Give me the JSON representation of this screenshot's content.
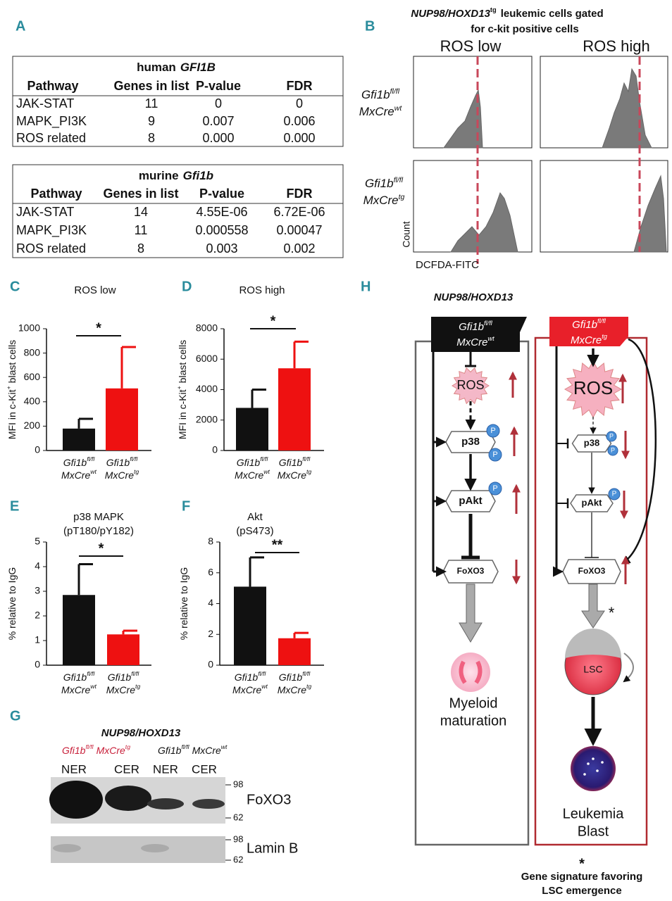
{
  "panel_labels": [
    "A",
    "B",
    "C",
    "D",
    "E",
    "F",
    "G",
    "H"
  ],
  "table_human": {
    "species": "human",
    "gene": "GFI1B",
    "headers": [
      "Pathway",
      "Genes in list",
      "P-value",
      "FDR"
    ],
    "rows": [
      [
        "JAK-STAT",
        "11",
        "0",
        "0"
      ],
      [
        "MAPK_PI3K",
        "9",
        "0.007",
        "0.006"
      ],
      [
        "ROS related",
        "8",
        "0.000",
        "0.000"
      ]
    ]
  },
  "table_murine": {
    "species": "murine",
    "gene": "Gfi1b",
    "headers": [
      "Pathway",
      "Genes in list",
      "P-value",
      "FDR"
    ],
    "rows": [
      [
        "JAK-STAT",
        "14",
        "4.55E-06",
        "6.72E-06"
      ],
      [
        "MAPK_PI3K",
        "11",
        "0.000558",
        "0.00047"
      ],
      [
        "ROS related",
        "8",
        "0.003",
        "0.002"
      ]
    ]
  },
  "panel_b": {
    "title_gene": "NUP98/HOXD13",
    "title_sup": "tg",
    "title_line1": "leukemic cells  gated",
    "title_line2": "for c-kit positive cells",
    "columns": [
      "ROS low",
      "ROS high"
    ],
    "rows": [
      {
        "gene": "Gfi1b",
        "gene_sup": "fl/fl",
        "cre": "MxCre",
        "cre_sup": "wt"
      },
      {
        "gene": "Gfi1b",
        "gene_sup": "fl/fl",
        "cre": "MxCre",
        "cre_sup": "tg"
      }
    ],
    "y_label": "Count",
    "x_label": "DCFDA-FITC"
  },
  "chart_data": [
    {
      "type": "bar",
      "title": "ROS low",
      "y_label": "MFI in c-Kit",
      "y_label_sup": "+",
      "y_label_end": "blast cells",
      "categories": [
        {
          "gene": "Gfi1b",
          "gene_sup": "fl/fl",
          "cre": "MxCre",
          "cre_sup": "wt"
        },
        {
          "gene": "Gfi1b",
          "gene_sup": "fl/fl",
          "cre": "MxCre",
          "cre_sup": "tg"
        }
      ],
      "values": [
        180,
        510
      ],
      "errors": [
        80,
        340
      ],
      "colors": [
        "#111111",
        "#ee1111"
      ],
      "ylim": [
        0,
        1000
      ],
      "yticks": [
        0,
        200,
        400,
        600,
        800,
        1000
      ],
      "significance": "*"
    },
    {
      "type": "bar",
      "title": "ROS high",
      "y_label": "MFI in c-Kit",
      "y_label_sup": "+",
      "y_label_end": "blast cells",
      "categories": [
        {
          "gene": "Gfi1b",
          "gene_sup": "fl/fl",
          "cre": "MxCre",
          "cre_sup": "wt"
        },
        {
          "gene": "Gfi1b",
          "gene_sup": "fl/fl",
          "cre": "MxCre",
          "cre_sup": "tg"
        }
      ],
      "values": [
        2800,
        5400
      ],
      "errors": [
        1200,
        1750
      ],
      "colors": [
        "#111111",
        "#ee1111"
      ],
      "ylim": [
        0,
        8000
      ],
      "yticks": [
        0,
        2000,
        4000,
        6000,
        8000
      ],
      "significance": "*"
    },
    {
      "type": "bar",
      "title": "p38  MAPK",
      "subtitle": "(pT180/pY182)",
      "y_label": "% relative  to IgG",
      "categories": [
        {
          "gene": "Gfi1b",
          "gene_sup": "fl/fl",
          "cre": "MxCre",
          "cre_sup": "wt"
        },
        {
          "gene": "Gfi1b",
          "gene_sup": "fl/fl",
          "cre": "MxCre",
          "cre_sup": "tg"
        }
      ],
      "values": [
        2.85,
        1.25
      ],
      "errors": [
        1.25,
        0.15
      ],
      "colors": [
        "#111111",
        "#ee1111"
      ],
      "ylim": [
        0,
        5
      ],
      "yticks": [
        0,
        1,
        2,
        3,
        4,
        5
      ],
      "significance": "*"
    },
    {
      "type": "bar",
      "title": "Akt",
      "subtitle": "(pS473)",
      "y_label": "% relative  to IgG",
      "categories": [
        {
          "gene": "Gfi1b",
          "gene_sup": "fl/fl",
          "cre": "MxCre",
          "cre_sup": "wt"
        },
        {
          "gene": "Gfi1b",
          "gene_sup": "fl/fl",
          "cre": "MxCre",
          "cre_sup": "tg"
        }
      ],
      "values": [
        5.1,
        1.75
      ],
      "errors": [
        1.9,
        0.35
      ],
      "colors": [
        "#111111",
        "#ee1111"
      ],
      "ylim": [
        0,
        8
      ],
      "yticks": [
        0,
        2,
        4,
        6,
        8
      ],
      "significance": "**"
    }
  ],
  "panel_g": {
    "title": "NUP98/HOXD13",
    "groups": [
      {
        "gene": "Gfi1b",
        "gene_sup": "fl/fl",
        "cre": "MxCre",
        "cre_sup": "tg"
      },
      {
        "gene": "Gfi1b",
        "gene_sup": "fl/fl",
        "cre": "MxCre",
        "cre_sup": "wt"
      }
    ],
    "lanes": [
      "NER",
      "CER",
      "NER",
      "CER"
    ],
    "markers": [
      "98",
      "62"
    ],
    "blots": [
      "FoXO3",
      "Lamin B"
    ]
  },
  "panel_h": {
    "title": "NUP98/HOXD13",
    "left_box": {
      "gene": "Gfi1b",
      "gene_sup": "fl/fl",
      "cre": "MxCre",
      "cre_sup": "wt"
    },
    "right_box": {
      "gene": "Gfi1b",
      "gene_sup": "fl/fl",
      "cre": "MxCre",
      "cre_sup": "tg"
    },
    "nodes": [
      "ROS",
      "p38",
      "pAkt",
      "FoXO3",
      "LSC"
    ],
    "phospho": "P",
    "left_outcome": [
      "Myeloid",
      "maturation"
    ],
    "right_outcome": [
      "Leukemia",
      "Blast"
    ],
    "asterisk": "*",
    "footnote_mark": "*",
    "footnote": [
      "Gene  signature favoring",
      "LSC emergence"
    ]
  }
}
